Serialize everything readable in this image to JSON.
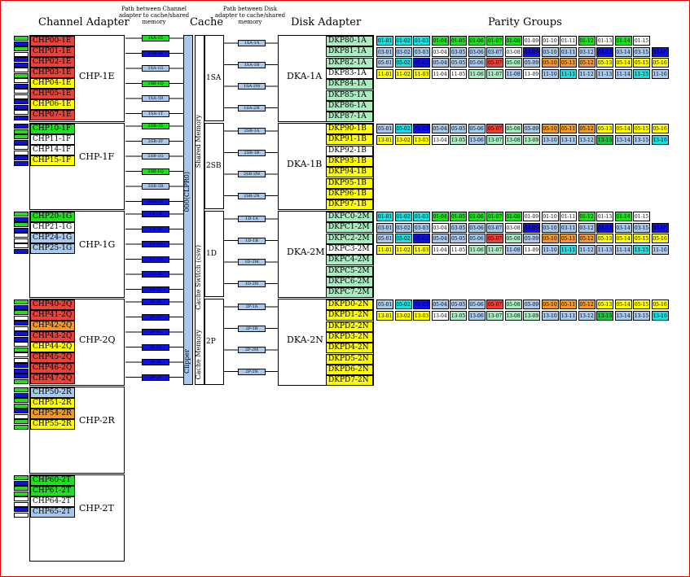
{
  "headers": {
    "channel_adapter": "Channel Adapter",
    "path_channel": "Path between Channel adapter to cache/shared memory",
    "cache": "Cache",
    "path_disk": "Path between Disk adapter to cache/shared memory",
    "disk_adapter": "Disk Adapter",
    "parity_groups": "Parity Groups"
  },
  "colors": {
    "red": "#e8433a",
    "green": "#22dd22",
    "yellow": "#ffff00",
    "blue": "#1010e0",
    "lightblue": "#a8c8ec",
    "white": "#ffffff",
    "mint": "#a8ecc0",
    "orange": "#f09830",
    "cyan": "#20dcdc",
    "darkgreen": "#20c040"
  },
  "chp_groups": [
    {
      "name": "CHP-1E",
      "items": [
        {
          "label": "CHP00-1E",
          "color": "red"
        },
        {
          "label": "CHP01-1E",
          "color": "red"
        },
        {
          "label": "CHP02-1E",
          "color": "red"
        },
        {
          "label": "CHP03-1E",
          "color": "red"
        },
        {
          "label": "CHP04-1E",
          "color": "yellow"
        },
        {
          "label": "CHP05-1E",
          "color": "red"
        },
        {
          "label": "CHP06-1E",
          "color": "yellow"
        },
        {
          "label": "CHP07-1E",
          "color": "red"
        }
      ],
      "ports": [
        "green",
        "blue",
        "green",
        "white",
        "blue",
        "blue",
        "white",
        "green",
        "white",
        "blue",
        "white",
        "white",
        "blue",
        "blue",
        "white",
        "blue"
      ]
    },
    {
      "name": "CHP-1F",
      "items": [
        {
          "label": "CHP10-1F",
          "color": "green"
        },
        {
          "label": "CHP11-1F",
          "color": "white"
        },
        {
          "label": "CHP14-1F",
          "color": "white"
        },
        {
          "label": "CHP15-1F",
          "color": "yellow"
        }
      ],
      "ports": [
        "blue",
        "green",
        "green",
        "blue",
        "white",
        "white",
        "blue",
        "blue"
      ]
    },
    {
      "name": "CHP-1G",
      "items": [
        {
          "label": "CHP20-1G",
          "color": "green"
        },
        {
          "label": "CHP21-1G",
          "color": "white"
        },
        {
          "label": "CHP24-1G",
          "color": "lightblue"
        },
        {
          "label": "CHP25-1G",
          "color": "lightblue"
        }
      ],
      "ports": [
        "green",
        "blue",
        "green",
        "blue",
        "white",
        "white",
        "white",
        "blue"
      ]
    },
    {
      "name": "CHP-2Q",
      "items": [
        {
          "label": "CHP40-2Q",
          "color": "red"
        },
        {
          "label": "CHP41-2Q",
          "color": "red"
        },
        {
          "label": "CHP42-2Q",
          "color": "orange"
        },
        {
          "label": "CHP43-2Q",
          "color": "red"
        },
        {
          "label": "CHP44-2Q",
          "color": "yellow"
        },
        {
          "label": "CHP45-2Q",
          "color": "red"
        },
        {
          "label": "CHP46-2Q",
          "color": "red"
        },
        {
          "label": "CHP47-2Q",
          "color": "red"
        }
      ],
      "ports": [
        "green",
        "blue",
        "green",
        "white",
        "blue",
        "white",
        "blue",
        "blue",
        "white",
        "green",
        "white",
        "white",
        "blue",
        "blue",
        "blue",
        "green"
      ]
    },
    {
      "name": "CHP-2R",
      "items": [
        {
          "label": "CHP50-2R",
          "color": "lightblue"
        },
        {
          "label": "CHP51-2R",
          "color": "yellow"
        },
        {
          "label": "CHP54-2R",
          "color": "orange"
        },
        {
          "label": "CHP55-2R",
          "color": "yellow"
        }
      ],
      "ports": [
        "green",
        "blue",
        "green",
        "green",
        "blue",
        "white",
        "green",
        "green"
      ]
    },
    {
      "name": "CHP-2T",
      "items": [
        {
          "label": "CHP60-2T",
          "color": "green"
        },
        {
          "label": "CHP61-2T",
          "color": "green"
        },
        {
          "label": "CHP64-2T",
          "color": "white"
        },
        {
          "label": "CHP65-2T",
          "color": "lightblue"
        }
      ],
      "ports": [
        "green",
        "blue",
        "green",
        "green",
        "white",
        "white",
        "blue",
        "white"
      ]
    }
  ],
  "chp_paths": [
    [
      {
        "label": "1SA-1E",
        "color": "green"
      },
      {
        "label": "1SB-1E",
        "color": "blue"
      },
      {
        "label": "1SA-1G",
        "color": "lightblue"
      },
      {
        "label": "1SB-1Q",
        "color": "green"
      },
      {
        "label": "1SA-1R",
        "color": "lightblue"
      },
      {
        "label": "1SA-1T",
        "color": "lightblue"
      }
    ],
    [
      {
        "label": "2SB-1E",
        "color": "green"
      },
      {
        "label": "2SB-1F",
        "color": "lightblue"
      },
      {
        "label": "2SB-1G",
        "color": "lightblue"
      },
      {
        "label": "2SB-1Q",
        "color": "green"
      },
      {
        "label": "2SB-2R",
        "color": "lightblue"
      },
      {
        "label": "2SB-2T",
        "color": "blue"
      }
    ],
    [
      {
        "label": "1D-1E",
        "color": "blue"
      },
      {
        "label": "1D-1F",
        "color": "blue"
      },
      {
        "label": "1D-1G",
        "color": "blue"
      },
      {
        "label": "1D-1Q",
        "color": "blue"
      },
      {
        "label": "1D-2R",
        "color": "blue"
      },
      {
        "label": "1D-2T",
        "color": "blue"
      }
    ],
    [
      {
        "label": "2P-1E",
        "color": "blue"
      },
      {
        "label": "2P-1F",
        "color": "blue"
      },
      {
        "label": "2P-1G",
        "color": "blue"
      },
      {
        "label": "2P-1Q",
        "color": "blue"
      },
      {
        "label": "2P-2R",
        "color": "blue"
      },
      {
        "label": "2P-2T",
        "color": "blue"
      }
    ]
  ],
  "cache": {
    "center_label": "000(CLPR0)",
    "shared_memory": "Shared Memory",
    "cache_switch": "Cache Switch (csw)",
    "cache_memory": "Cache Memory",
    "clipper": "Clipper",
    "modules": [
      "1SA",
      "2SB",
      "1D",
      "2P"
    ]
  },
  "dka_paths": [
    [
      "1SA-1A",
      "1SA-1B",
      "1SA-2M",
      "1SA-2N"
    ],
    [
      "2SB-1A",
      "2SB-1B",
      "2SB-2M",
      "2SB-2N"
    ],
    [
      "1D-1A",
      "1D-1B",
      "1D-2M",
      "1D-2N"
    ],
    [
      "2P-1A",
      "2P-1B",
      "2P-2M",
      "2P-2N"
    ]
  ],
  "dka_groups": [
    {
      "name": "DKA-1A",
      "items": [
        {
          "label": "DKP80-1A",
          "color": "mint"
        },
        {
          "label": "DKP81-1A",
          "color": "mint"
        },
        {
          "label": "DKP82-1A",
          "color": "mint"
        },
        {
          "label": "DKP83-1A",
          "color": "white"
        },
        {
          "label": "DKP84-1A",
          "color": "mint"
        },
        {
          "label": "DKP85-1A",
          "color": "mint"
        },
        {
          "label": "DKP86-1A",
          "color": "mint"
        },
        {
          "label": "DKP87-1A",
          "color": "mint"
        }
      ],
      "pg_rows": [
        {
          "labels": [
            "01-01",
            "01-02",
            "01-03",
            "01-04",
            "01-05",
            "01-06",
            "01-07",
            "01-08",
            "01-09",
            "01-10",
            "01-11",
            "01-12",
            "01-13",
            "01-14",
            "01-15"
          ],
          "colors": [
            "cyan",
            "cyan",
            "cyan",
            "green",
            "green",
            "green",
            "green",
            "green",
            "white",
            "white",
            "white",
            "green",
            "white",
            "green",
            "white"
          ]
        },
        {
          "labels": [
            "03-01",
            "03-02",
            "03-03",
            "03-04",
            "03-05",
            "03-06",
            "03-07",
            "03-08",
            "03-09",
            "03-10",
            "03-11",
            "03-12",
            "03-13",
            "03-14",
            "03-15",
            "03-16"
          ],
          "colors": [
            "lightblue",
            "lightblue",
            "lightblue",
            "white",
            "lightblue",
            "lightblue",
            "lightblue",
            "white",
            "blue",
            "lightblue",
            "lightblue",
            "lightblue",
            "blue",
            "lightblue",
            "lightblue",
            "blue"
          ]
        },
        {
          "labels": [
            "05-01",
            "05-02",
            "05-03",
            "05-04",
            "05-05",
            "05-06",
            "05-07",
            "05-08",
            "05-09",
            "05-10",
            "05-11",
            "05-12",
            "05-13",
            "05-14",
            "05-15",
            "05-16"
          ],
          "colors": [
            "lightblue",
            "cyan",
            "blue",
            "lightblue",
            "lightblue",
            "lightblue",
            "red",
            "mint",
            "lightblue",
            "orange",
            "orange",
            "orange",
            "yellow",
            "yellow",
            "yellow",
            "yellow"
          ]
        },
        {
          "labels": [
            "11-01",
            "11-02",
            "11-03",
            "11-04",
            "11-05",
            "11-06",
            "11-07",
            "11-08",
            "11-09",
            "11-10",
            "11-11",
            "11-12",
            "11-13",
            "11-14",
            "11-15",
            "11-16"
          ],
          "colors": [
            "yellow",
            "yellow",
            "yellow",
            "white",
            "white",
            "mint",
            "mint",
            "lightblue",
            "white",
            "lightblue",
            "cyan",
            "lightblue",
            "lightblue",
            "lightblue",
            "cyan",
            "lightblue"
          ]
        }
      ]
    },
    {
      "name": "DKA-1B",
      "items": [
        {
          "label": "DKP90-1B",
          "color": "yellow"
        },
        {
          "label": "DKP91-1B",
          "color": "yellow"
        },
        {
          "label": "DKP92-1B",
          "color": "white"
        },
        {
          "label": "DKP93-1B",
          "color": "yellow"
        },
        {
          "label": "DKP94-1B",
          "color": "yellow"
        },
        {
          "label": "DKP95-1B",
          "color": "yellow"
        },
        {
          "label": "DKP96-1B",
          "color": "yellow"
        },
        {
          "label": "DKP97-1B",
          "color": "yellow"
        }
      ],
      "pg_rows": [
        {
          "labels": [
            "05-01",
            "05-02",
            "05-03",
            "05-04",
            "05-05",
            "05-06",
            "05-07",
            "05-08",
            "05-09",
            "05-10",
            "05-11",
            "05-12",
            "05-13",
            "05-14",
            "05-15",
            "05-16"
          ],
          "colors": [
            "lightblue",
            "cyan",
            "blue",
            "lightblue",
            "lightblue",
            "lightblue",
            "red",
            "mint",
            "lightblue",
            "orange",
            "orange",
            "orange",
            "yellow",
            "yellow",
            "yellow",
            "yellow"
          ]
        },
        {
          "labels": [
            "13-01",
            "13-02",
            "13-03",
            "13-04",
            "13-05",
            "13-06",
            "13-07",
            "13-08",
            "13-09",
            "13-10",
            "13-11",
            "13-12",
            "13-13",
            "13-14",
            "13-15",
            "13-16"
          ],
          "colors": [
            "yellow",
            "yellow",
            "yellow",
            "white",
            "mint",
            "lightblue",
            "mint",
            "mint",
            "mint",
            "lightblue",
            "lightblue",
            "lightblue",
            "darkgreen",
            "lightblue",
            "lightblue",
            "cyan"
          ]
        }
      ]
    },
    {
      "name": "DKA-2M",
      "items": [
        {
          "label": "DKPC0-2M",
          "color": "mint"
        },
        {
          "label": "DKPC1-2M",
          "color": "mint"
        },
        {
          "label": "DKPC2-2M",
          "color": "mint"
        },
        {
          "label": "DKPC3-2M",
          "color": "white"
        },
        {
          "label": "DKPC4-2M",
          "color": "mint"
        },
        {
          "label": "DKPC5-2M",
          "color": "mint"
        },
        {
          "label": "DKPC6-2M",
          "color": "mint"
        },
        {
          "label": "DKPC7-2M",
          "color": "mint"
        }
      ],
      "pg_rows": [
        {
          "labels": [
            "01-01",
            "01-02",
            "01-03",
            "01-04",
            "01-05",
            "01-06",
            "01-07",
            "01-08",
            "01-09",
            "01-10",
            "01-11",
            "01-12",
            "01-13",
            "01-14",
            "01-15"
          ],
          "colors": [
            "cyan",
            "cyan",
            "cyan",
            "green",
            "green",
            "green",
            "green",
            "green",
            "white",
            "white",
            "white",
            "green",
            "white",
            "green",
            "white"
          ]
        },
        {
          "labels": [
            "03-01",
            "03-02",
            "03-03",
            "03-04",
            "03-05",
            "03-06",
            "03-07",
            "03-08",
            "03-09",
            "03-10",
            "03-11",
            "03-12",
            "03-13",
            "03-14",
            "03-15",
            "03-16"
          ],
          "colors": [
            "lightblue",
            "lightblue",
            "lightblue",
            "white",
            "lightblue",
            "lightblue",
            "lightblue",
            "white",
            "blue",
            "lightblue",
            "lightblue",
            "lightblue",
            "blue",
            "lightblue",
            "lightblue",
            "blue"
          ]
        },
        {
          "labels": [
            "05-01",
            "05-02",
            "05-03",
            "05-04",
            "05-05",
            "05-06",
            "05-07",
            "05-08",
            "05-09",
            "05-10",
            "05-11",
            "05-12",
            "05-13",
            "05-14",
            "05-15",
            "05-16"
          ],
          "colors": [
            "lightblue",
            "cyan",
            "blue",
            "lightblue",
            "lightblue",
            "lightblue",
            "red",
            "mint",
            "lightblue",
            "orange",
            "orange",
            "orange",
            "yellow",
            "yellow",
            "yellow",
            "yellow"
          ]
        },
        {
          "labels": [
            "11-01",
            "11-02",
            "11-03",
            "11-04",
            "11-05",
            "11-06",
            "11-07",
            "11-08",
            "11-09",
            "11-10",
            "11-11",
            "11-12",
            "11-13",
            "11-14",
            "11-15",
            "11-16"
          ],
          "colors": [
            "yellow",
            "yellow",
            "yellow",
            "white",
            "white",
            "mint",
            "mint",
            "lightblue",
            "white",
            "lightblue",
            "cyan",
            "lightblue",
            "lightblue",
            "lightblue",
            "cyan",
            "lightblue"
          ]
        }
      ]
    },
    {
      "name": "DKA-2N",
      "items": [
        {
          "label": "DKPD0-2N",
          "color": "yellow"
        },
        {
          "label": "DKPD1-2N",
          "color": "yellow"
        },
        {
          "label": "DKPD2-2N",
          "color": "yellow"
        },
        {
          "label": "DKPD3-2N",
          "color": "yellow"
        },
        {
          "label": "DKPD4-2N",
          "color": "yellow"
        },
        {
          "label": "DKPD5-2N",
          "color": "yellow"
        },
        {
          "label": "DKPD6-2N",
          "color": "yellow"
        },
        {
          "label": "DKPD7-2N",
          "color": "yellow"
        }
      ],
      "pg_rows": [
        {
          "labels": [
            "05-01",
            "05-02",
            "05-03",
            "05-04",
            "05-05",
            "05-06",
            "05-07",
            "05-08",
            "05-09",
            "05-10",
            "05-11",
            "05-12",
            "05-13",
            "05-14",
            "05-15",
            "05-16"
          ],
          "colors": [
            "lightblue",
            "cyan",
            "blue",
            "lightblue",
            "lightblue",
            "lightblue",
            "red",
            "mint",
            "lightblue",
            "orange",
            "orange",
            "orange",
            "yellow",
            "yellow",
            "yellow",
            "yellow"
          ]
        },
        {
          "labels": [
            "13-01",
            "13-02",
            "13-03",
            "13-04",
            "13-05",
            "13-06",
            "13-07",
            "13-08",
            "13-09",
            "13-10",
            "13-11",
            "13-12",
            "13-13",
            "13-14",
            "13-15",
            "13-16"
          ],
          "colors": [
            "yellow",
            "yellow",
            "yellow",
            "white",
            "mint",
            "lightblue",
            "mint",
            "mint",
            "mint",
            "lightblue",
            "lightblue",
            "lightblue",
            "darkgreen",
            "lightblue",
            "lightblue",
            "cyan"
          ]
        }
      ]
    }
  ]
}
